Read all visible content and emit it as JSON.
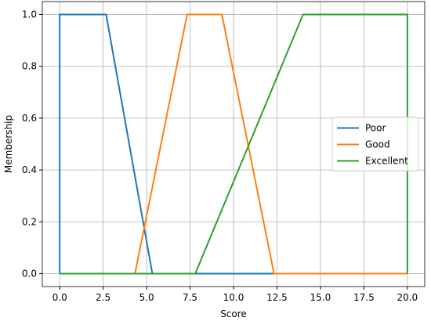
{
  "chart_data": {
    "type": "line",
    "xlabel": "Score",
    "ylabel": "Membership",
    "xlim": [
      -1,
      21
    ],
    "ylim": [
      -0.05,
      1.05
    ],
    "xticks": [
      {
        "value": 0,
        "label": "0.0"
      },
      {
        "value": 2.5,
        "label": "2.5"
      },
      {
        "value": 5,
        "label": "5.0"
      },
      {
        "value": 7.5,
        "label": "7.5"
      },
      {
        "value": 10,
        "label": "10.0"
      },
      {
        "value": 12.5,
        "label": "12.5"
      },
      {
        "value": 15,
        "label": "15.0"
      },
      {
        "value": 17.5,
        "label": "17.5"
      },
      {
        "value": 20,
        "label": "20.0"
      }
    ],
    "yticks": [
      {
        "value": 0,
        "label": "0.0"
      },
      {
        "value": 0.2,
        "label": "0.2"
      },
      {
        "value": 0.4,
        "label": "0.4"
      },
      {
        "value": 0.6,
        "label": "0.6"
      },
      {
        "value": 0.8,
        "label": "0.8"
      },
      {
        "value": 1,
        "label": "1.0"
      }
    ],
    "grid": true,
    "legend": "center right",
    "series": [
      {
        "name": "Poor",
        "color": "#1f77b4",
        "x": [
          0,
          0,
          2.67,
          5.33,
          20
        ],
        "values": [
          0,
          1,
          1,
          0,
          0
        ]
      },
      {
        "name": "Good",
        "color": "#ff7f0e",
        "x": [
          0,
          4.33,
          7.33,
          9.33,
          12.33,
          20
        ],
        "values": [
          0,
          0,
          1,
          1,
          0,
          0
        ]
      },
      {
        "name": "Excellent",
        "color": "#2ca02c",
        "x": [
          0,
          7.8,
          14,
          20,
          20
        ],
        "values": [
          0,
          0,
          1,
          1,
          0
        ]
      }
    ]
  }
}
